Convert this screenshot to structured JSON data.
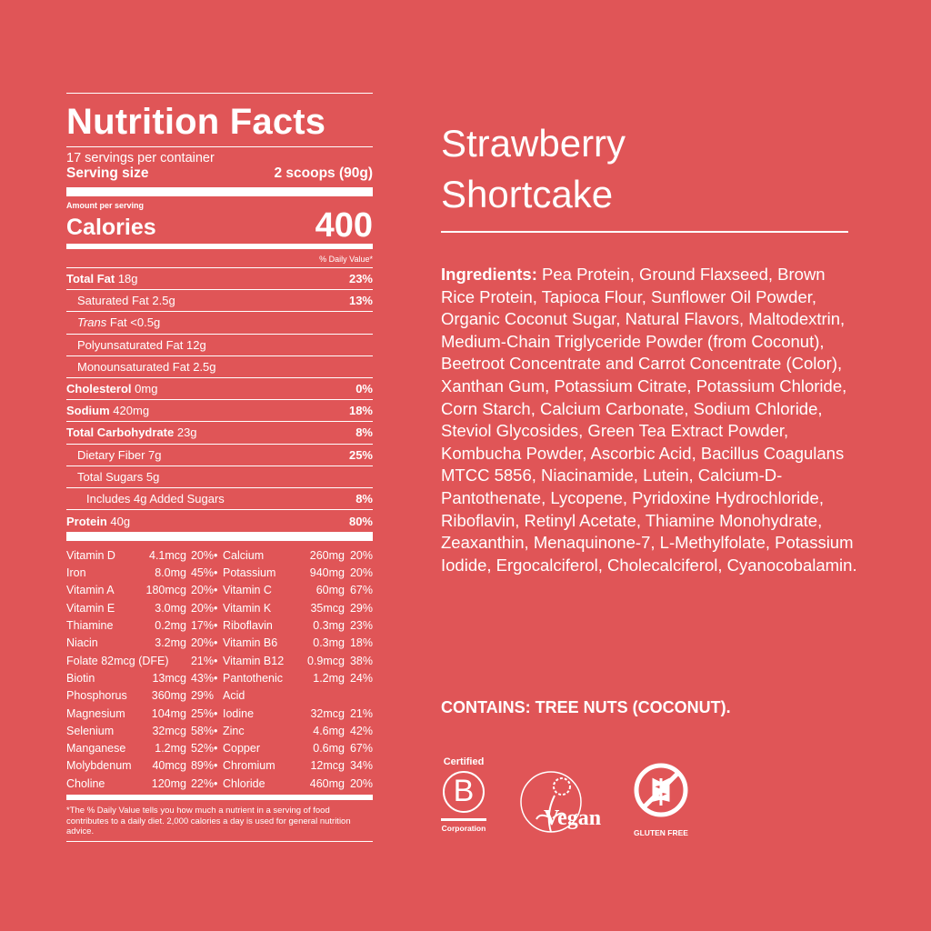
{
  "nutrition": {
    "title": "Nutrition Facts",
    "servings": "17 servings per container",
    "serving_size_label": "Serving size",
    "serving_size_value": "2 scoops (90g)",
    "amount_per_serving": "Amount per serving",
    "calories_label": "Calories",
    "calories_value": "400",
    "dv_header": "% Daily Value*",
    "rows": [
      {
        "name": "Total Fat",
        "amount": "18g",
        "dv": "23%",
        "bold": true,
        "indent": 0
      },
      {
        "name": "Saturated Fat",
        "amount": "2.5g",
        "dv": "13%",
        "bold": false,
        "indent": 1
      },
      {
        "name": "Trans",
        "amount": "Fat <0.5g",
        "dv": "",
        "bold": false,
        "indent": 1,
        "italic": true
      },
      {
        "name": "Polyunsaturated Fat",
        "amount": "12g",
        "dv": "",
        "bold": false,
        "indent": 1
      },
      {
        "name": "Monounsaturated Fat",
        "amount": "2.5g",
        "dv": "",
        "bold": false,
        "indent": 1
      },
      {
        "name": "Cholesterol",
        "amount": "0mg",
        "dv": "0%",
        "bold": true,
        "indent": 0
      },
      {
        "name": "Sodium",
        "amount": "420mg",
        "dv": "18%",
        "bold": true,
        "indent": 0
      },
      {
        "name": "Total Carbohydrate",
        "amount": "23g",
        "dv": "8%",
        "bold": true,
        "indent": 0
      },
      {
        "name": "Dietary Fiber",
        "amount": "7g",
        "dv": "25%",
        "bold": false,
        "indent": 1
      },
      {
        "name": "Total Sugars",
        "amount": "5g",
        "dv": "",
        "bold": false,
        "indent": 1
      },
      {
        "name": "Includes 4g Added Sugars",
        "amount": "",
        "dv": "8%",
        "bold": false,
        "indent": 2
      },
      {
        "name": "Protein",
        "amount": "40g",
        "dv": "80%",
        "bold": true,
        "indent": 0
      }
    ],
    "vitamins": [
      [
        "Vitamin D",
        "4.1mcg",
        "20%",
        "•",
        "Calcium",
        "260mg",
        "20%"
      ],
      [
        "Iron",
        "8.0mg",
        "45%",
        "•",
        "Potassium",
        "940mg",
        "20%"
      ],
      [
        "Vitamin A",
        "180mcg",
        "20%",
        "•",
        "Vitamin C",
        "60mg",
        "67%"
      ],
      [
        "Vitamin E",
        "3.0mg",
        "20%",
        "•",
        "Vitamin K",
        "35mcg",
        "29%"
      ],
      [
        "Thiamine",
        "0.2mg",
        "17%",
        "•",
        "Riboflavin",
        "0.3mg",
        "23%"
      ],
      [
        "Niacin",
        "3.2mg",
        "20%",
        "•",
        "Vitamin B6",
        "0.3mg",
        "18%"
      ],
      [
        "Folate 82mcg (DFE)",
        "",
        "21%",
        "•",
        "Vitamin B12",
        "0.9mcg",
        "38%"
      ],
      [
        "Biotin",
        "13mcg",
        "43%",
        "•",
        "Pantothenic",
        "1.2mg",
        "24%"
      ],
      [
        "Phosphorus",
        "360mg",
        "29%",
        "",
        "Acid",
        "",
        ""
      ],
      [
        "Magnesium",
        "104mg",
        "25%",
        "•",
        "Iodine",
        "32mcg",
        "21%"
      ],
      [
        "Selenium",
        "32mcg",
        "58%",
        "•",
        "Zinc",
        "4.6mg",
        "42%"
      ],
      [
        "Manganese",
        "1.2mg",
        "52%",
        "•",
        "Copper",
        "0.6mg",
        "67%"
      ],
      [
        "Molybdenum",
        "40mcg",
        "89%",
        "•",
        "Chromium",
        "12mcg",
        "34%"
      ],
      [
        "Choline",
        "120mg",
        "22%",
        "•",
        "Chloride",
        "460mg",
        "20%"
      ]
    ],
    "footnote": "*The % Daily Value tells you how much a nutrient in a serving of food contributes to a daily diet. 2,000 calories a day is used for general nutrition advice."
  },
  "product": {
    "title_line1": "Strawberry",
    "title_line2": "Shortcake"
  },
  "ingredients": {
    "label": "Ingredients:",
    "text": " Pea Protein, Ground Flaxseed, Brown Rice Protein, Tapioca Flour, Sunflower Oil Powder, Organic Coconut Sugar, Natural Flavors, Maltodextrin, Medium-Chain Triglyceride Powder (from Coconut), Beetroot Concentrate and Carrot Concentrate (Color), Xanthan Gum, Potassium Citrate, Potassium Chloride, Corn Starch, Calcium Carbonate, Sodium Chloride, Steviol Glycosides, Green Tea Extract Powder, Kombucha Powder, Ascorbic Acid, Bacillus Coagulans MTCC 5856, Niacinamide, Lutein, Calcium-D-Pantothenate, Lycopene, Pyridoxine Hydrochloride, Riboflavin, Retinyl Acetate, Thiamine Monohydrate, Zeaxanthin, Menaquinone-7, L-Methylfolate, Potassium Iodide, Ergocalciferol, Cholecalciferol, Cyanocobalamin."
  },
  "contains": "CONTAINS: TREE NUTS (COCONUT).",
  "badges": {
    "bcorp_top": "Certified",
    "bcorp_letter": "B",
    "bcorp_bottom": "Corporation",
    "vegan": "Vegan",
    "gluten": "GLUTEN FREE"
  },
  "colors": {
    "background": "#E05557",
    "foreground": "#FFFFFF"
  }
}
